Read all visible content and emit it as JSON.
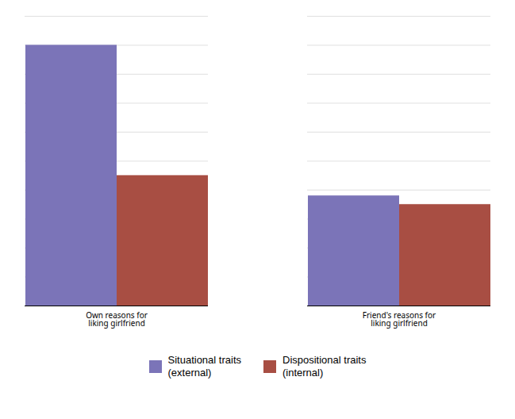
{
  "chart_data": {
    "type": "bar",
    "categories": [
      "Own reasons for\nliking girlfriend",
      "Friend's reasons for\nliking girlfriend"
    ],
    "series": [
      {
        "name": "Situational traits\n(external)",
        "color": "#7B74B8",
        "values": [
          9.0,
          3.8
        ]
      },
      {
        "name": "Dispositional traits\n(internal)",
        "color": "#A84E43",
        "values": [
          4.5,
          3.5
        ]
      }
    ],
    "ylim": [
      0,
      10
    ],
    "yticks": [
      0,
      1,
      2,
      3,
      4,
      5,
      6,
      7,
      8,
      9,
      10
    ],
    "grid": true,
    "tick_labels": "x",
    "legend": "bottom"
  }
}
